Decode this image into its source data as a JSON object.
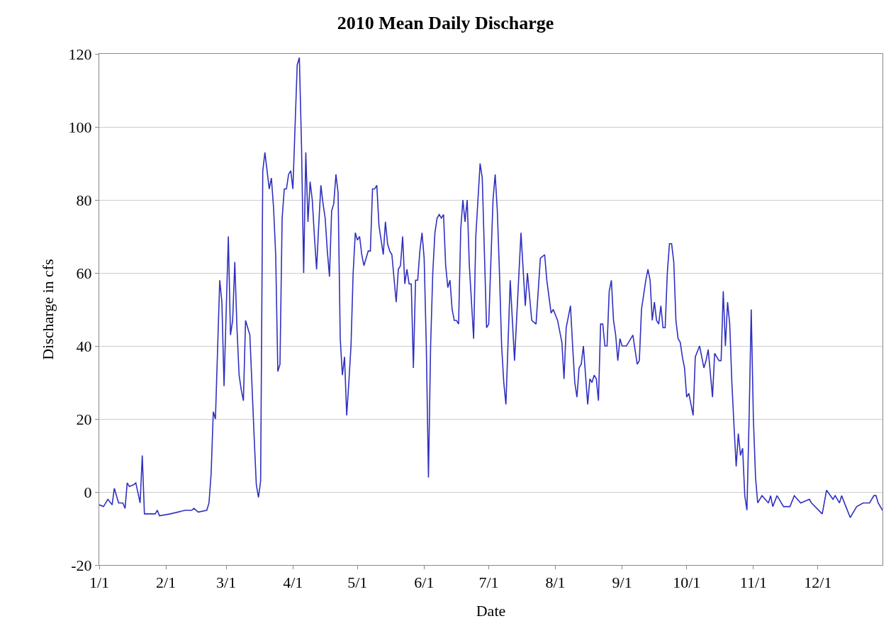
{
  "chart_data": {
    "type": "line",
    "title": "2010 Mean Daily Discharge",
    "xlabel": "Date",
    "ylabel": "Discharge in cfs",
    "xlim": [
      "2010-01-01",
      "2010-12-31"
    ],
    "xticks": [
      {
        "value": "2010-01-01",
        "label": "1/1"
      },
      {
        "value": "2010-02-01",
        "label": "2/1"
      },
      {
        "value": "2010-03-01",
        "label": "3/1"
      },
      {
        "value": "2010-04-01",
        "label": "4/1"
      },
      {
        "value": "2010-05-01",
        "label": "5/1"
      },
      {
        "value": "2010-06-01",
        "label": "6/1"
      },
      {
        "value": "2010-07-01",
        "label": "7/1"
      },
      {
        "value": "2010-08-01",
        "label": "8/1"
      },
      {
        "value": "2010-09-01",
        "label": "9/1"
      },
      {
        "value": "2010-10-01",
        "label": "10/1"
      },
      {
        "value": "2010-11-01",
        "label": "11/1"
      },
      {
        "value": "2010-12-01",
        "label": "12/1"
      }
    ],
    "ylim": [
      -20,
      120
    ],
    "yticks": [
      -20,
      0,
      20,
      40,
      60,
      80,
      100,
      120
    ],
    "grid": "y",
    "marker": "none",
    "line_style": "solid",
    "series": [
      {
        "color": "#3030c0",
        "x": [
          "2010-01-01",
          "2010-01-03",
          "2010-01-05",
          "2010-01-07",
          "2010-01-08",
          "2010-01-10",
          "2010-01-12",
          "2010-01-13",
          "2010-01-14",
          "2010-01-15",
          "2010-01-17",
          "2010-01-18",
          "2010-01-20",
          "2010-01-21",
          "2010-01-22",
          "2010-01-27",
          "2010-01-28",
          "2010-01-29",
          "2010-02-03",
          "2010-02-10",
          "2010-02-13",
          "2010-02-14",
          "2010-02-16",
          "2010-02-20",
          "2010-02-21",
          "2010-02-22",
          "2010-02-23",
          "2010-02-24",
          "2010-02-26",
          "2010-02-27",
          "2010-02-28",
          "2010-03-02",
          "2010-03-03",
          "2010-03-04",
          "2010-03-05",
          "2010-03-06",
          "2010-03-07",
          "2010-03-08",
          "2010-03-09",
          "2010-03-10",
          "2010-03-11",
          "2010-03-12",
          "2010-03-14",
          "2010-03-15",
          "2010-03-16",
          "2010-03-17",
          "2010-03-18",
          "2010-03-19",
          "2010-03-20",
          "2010-03-21",
          "2010-03-22",
          "2010-03-23",
          "2010-03-24",
          "2010-03-25",
          "2010-03-26",
          "2010-03-27",
          "2010-03-28",
          "2010-03-29",
          "2010-03-30",
          "2010-03-31",
          "2010-04-01",
          "2010-04-02",
          "2010-04-03",
          "2010-04-04",
          "2010-04-05",
          "2010-04-06",
          "2010-04-07",
          "2010-04-08",
          "2010-04-09",
          "2010-04-10",
          "2010-04-11",
          "2010-04-12",
          "2010-04-13",
          "2010-04-14",
          "2010-04-15",
          "2010-04-16",
          "2010-04-17",
          "2010-04-18",
          "2010-04-19",
          "2010-04-20",
          "2010-04-21",
          "2010-04-22",
          "2010-04-23",
          "2010-04-24",
          "2010-04-25",
          "2010-04-26",
          "2010-04-27",
          "2010-04-28",
          "2010-04-29",
          "2010-04-30",
          "2010-05-01",
          "2010-05-02",
          "2010-05-03",
          "2010-05-04",
          "2010-05-06",
          "2010-05-07",
          "2010-05-08",
          "2010-05-09",
          "2010-05-10",
          "2010-05-11",
          "2010-05-13",
          "2010-05-14",
          "2010-05-15",
          "2010-05-16",
          "2010-05-17",
          "2010-05-19",
          "2010-05-20",
          "2010-05-21",
          "2010-05-22",
          "2010-05-23",
          "2010-05-24",
          "2010-05-25",
          "2010-05-26",
          "2010-05-27",
          "2010-05-28",
          "2010-05-29",
          "2010-05-30",
          "2010-05-31",
          "2010-06-01",
          "2010-06-02",
          "2010-06-03",
          "2010-06-04",
          "2010-06-05",
          "2010-06-06",
          "2010-06-07",
          "2010-06-08",
          "2010-06-09",
          "2010-06-10",
          "2010-06-11",
          "2010-06-12",
          "2010-06-13",
          "2010-06-14",
          "2010-06-15",
          "2010-06-16",
          "2010-06-17",
          "2010-06-18",
          "2010-06-19",
          "2010-06-20",
          "2010-06-21",
          "2010-06-22",
          "2010-06-24",
          "2010-06-25",
          "2010-06-26",
          "2010-06-27",
          "2010-06-28",
          "2010-06-30",
          "2010-07-01",
          "2010-07-03",
          "2010-07-04",
          "2010-07-05",
          "2010-07-06",
          "2010-07-07",
          "2010-07-08",
          "2010-07-09",
          "2010-07-11",
          "2010-07-13",
          "2010-07-16",
          "2010-07-18",
          "2010-07-19",
          "2010-07-21",
          "2010-07-23",
          "2010-07-25",
          "2010-07-27",
          "2010-07-28",
          "2010-07-30",
          "2010-07-31",
          "2010-08-02",
          "2010-08-04",
          "2010-08-05",
          "2010-08-06",
          "2010-08-08",
          "2010-08-09",
          "2010-08-10",
          "2010-08-11",
          "2010-08-12",
          "2010-08-13",
          "2010-08-14",
          "2010-08-16",
          "2010-08-17",
          "2010-08-18",
          "2010-08-19",
          "2010-08-20",
          "2010-08-21",
          "2010-08-22",
          "2010-08-23",
          "2010-08-24",
          "2010-08-25",
          "2010-08-26",
          "2010-08-27",
          "2010-08-28",
          "2010-08-29",
          "2010-08-30",
          "2010-08-31",
          "2010-09-01",
          "2010-09-03",
          "2010-09-04",
          "2010-09-06",
          "2010-09-08",
          "2010-09-09",
          "2010-09-10",
          "2010-09-12",
          "2010-09-13",
          "2010-09-14",
          "2010-09-15",
          "2010-09-16",
          "2010-09-17",
          "2010-09-18",
          "2010-09-19",
          "2010-09-20",
          "2010-09-21",
          "2010-09-22",
          "2010-09-23",
          "2010-09-24",
          "2010-09-25",
          "2010-09-26",
          "2010-09-27",
          "2010-09-28",
          "2010-09-29",
          "2010-09-30",
          "2010-10-01",
          "2010-10-02",
          "2010-10-04",
          "2010-10-05",
          "2010-10-07",
          "2010-10-09",
          "2010-10-10",
          "2010-10-11",
          "2010-10-13",
          "2010-10-14",
          "2010-10-16",
          "2010-10-17",
          "2010-10-18",
          "2010-10-19",
          "2010-10-20",
          "2010-10-21",
          "2010-10-22",
          "2010-10-23",
          "2010-10-24",
          "2010-10-25",
          "2010-10-26",
          "2010-10-27",
          "2010-10-28",
          "2010-10-29",
          "2010-10-30",
          "2010-10-31",
          "2010-11-01",
          "2010-11-02",
          "2010-11-03",
          "2010-11-05",
          "2010-11-08",
          "2010-11-09",
          "2010-11-10",
          "2010-11-12",
          "2010-11-15",
          "2010-11-18",
          "2010-11-20",
          "2010-11-23",
          "2010-11-27",
          "2010-11-28",
          "2010-12-03",
          "2010-12-05",
          "2010-12-08",
          "2010-12-09",
          "2010-12-11",
          "2010-12-12",
          "2010-12-14",
          "2010-12-16",
          "2010-12-19",
          "2010-12-22",
          "2010-12-25",
          "2010-12-27",
          "2010-12-28",
          "2010-12-29",
          "2010-12-31"
        ],
        "values": [
          -3.5,
          -4,
          -2,
          -3.5,
          1,
          -3,
          -3,
          -4.5,
          2.5,
          1.5,
          2,
          2.5,
          -3,
          10,
          -6,
          -6,
          -5,
          -6.5,
          -6,
          -5,
          -5,
          -4.5,
          -5.5,
          -5,
          -3,
          5,
          22,
          20,
          58,
          52,
          29,
          70,
          43,
          47,
          63,
          45,
          32,
          28,
          25,
          47,
          45,
          43,
          15,
          2,
          -1.5,
          3,
          88,
          93,
          88,
          83,
          86,
          78,
          65,
          33,
          35,
          75,
          83,
          83,
          87,
          88,
          83,
          100,
          117,
          119,
          95,
          60,
          93,
          74,
          85,
          80,
          70,
          61,
          73,
          84,
          79,
          75,
          66,
          59,
          77,
          79,
          87,
          82,
          42,
          32,
          37,
          21,
          30,
          40,
          60,
          71,
          69,
          70,
          65,
          62,
          66,
          66,
          83,
          83,
          84,
          73,
          65,
          74,
          68,
          66,
          65,
          52,
          61,
          62,
          70,
          57,
          61,
          57,
          57,
          34,
          58,
          58,
          66,
          71,
          64,
          40,
          4,
          40,
          60,
          71,
          75,
          76,
          75,
          76,
          62,
          56,
          58,
          50,
          47,
          47,
          46,
          72,
          80,
          74,
          80,
          62,
          42,
          70,
          80,
          90,
          86,
          45,
          46,
          80,
          87,
          77,
          60,
          40,
          30,
          24,
          58,
          36,
          71,
          51,
          60,
          47,
          46,
          64,
          65,
          58,
          49,
          50,
          47,
          41,
          31,
          45,
          51,
          40,
          30,
          26,
          34,
          35,
          40,
          24,
          31,
          30,
          32,
          31,
          25,
          46,
          46,
          40,
          40,
          55,
          58,
          47,
          43,
          36,
          42,
          40,
          40,
          41,
          43,
          35,
          36,
          50,
          58,
          61,
          58,
          47,
          52,
          47,
          46,
          51,
          45,
          45,
          60,
          68,
          68,
          63,
          47,
          42,
          41,
          37,
          34,
          26,
          27,
          21,
          37,
          40,
          34,
          36,
          39,
          26,
          38,
          36,
          36,
          55,
          40,
          52,
          46,
          30,
          18,
          7,
          16,
          10,
          12,
          -1,
          -5,
          20,
          50,
          20,
          4,
          -3,
          -1,
          -3,
          -1,
          -4,
          -1,
          -4,
          -4,
          -1,
          -3,
          -2,
          -3,
          -6,
          0.5,
          -2,
          -1,
          -3,
          -1,
          -4,
          -7,
          -4,
          -3,
          -3,
          -1,
          -1,
          -3,
          -5
        ]
      }
    ]
  }
}
